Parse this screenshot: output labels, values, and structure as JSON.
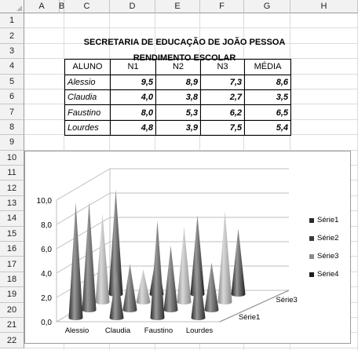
{
  "columns": [
    "A",
    "B",
    "C",
    "D",
    "E",
    "F",
    "G",
    "H"
  ],
  "rows": [
    "1",
    "2",
    "3",
    "4",
    "5",
    "6",
    "7",
    "8",
    "9",
    "10",
    "11",
    "12",
    "13",
    "14",
    "15",
    "16",
    "17",
    "18",
    "19",
    "20",
    "21",
    "22"
  ],
  "sheet": {
    "title1": "SECRETARIA DE EDUCAÇÃO DE JOÃO PESSOA",
    "title2": "RENDIMENTO ESCOLAR",
    "headers": [
      "ALUNO",
      "N1",
      "N2",
      "N3",
      "MÉDIA"
    ],
    "students": [
      {
        "name": "Alessio",
        "n1": "9,5",
        "n2": "8,9",
        "n3": "7,3",
        "media": "8,6"
      },
      {
        "name": "Claudia",
        "n1": "4,0",
        "n2": "3,8",
        "n3": "2,7",
        "media": "3,5"
      },
      {
        "name": "Faustino",
        "n1": "8,0",
        "n2": "5,3",
        "n3": "6,2",
        "media": "6,5"
      },
      {
        "name": "Lourdes",
        "n1": "4,8",
        "n2": "3,9",
        "n3": "7,5",
        "media": "5,4"
      }
    ]
  },
  "chart_data": {
    "type": "bar",
    "subtype": "3d-cone",
    "categories": [
      "Alessio",
      "Claudia",
      "Faustino",
      "Lourdes"
    ],
    "series": [
      {
        "name": "Série1",
        "values": [
          9.5,
          4.0,
          8.0,
          4.8
        ],
        "color": "#2b2b2b"
      },
      {
        "name": "Série2",
        "values": [
          8.9,
          3.8,
          5.3,
          3.9
        ],
        "color": "#3a3a3a"
      },
      {
        "name": "Série3",
        "values": [
          7.3,
          2.7,
          6.2,
          7.5
        ],
        "color": "#8a8a8a"
      },
      {
        "name": "Série4",
        "values": [
          8.6,
          3.5,
          6.5,
          5.4
        ],
        "color": "#1e1e1e"
      }
    ],
    "y_ticks": [
      "0,0",
      "2,0",
      "4,0",
      "6,0",
      "8,0",
      "10,0"
    ],
    "depth_labels": [
      "Série1",
      "Série3"
    ],
    "ylim": [
      0,
      10
    ],
    "legend_position": "right"
  }
}
